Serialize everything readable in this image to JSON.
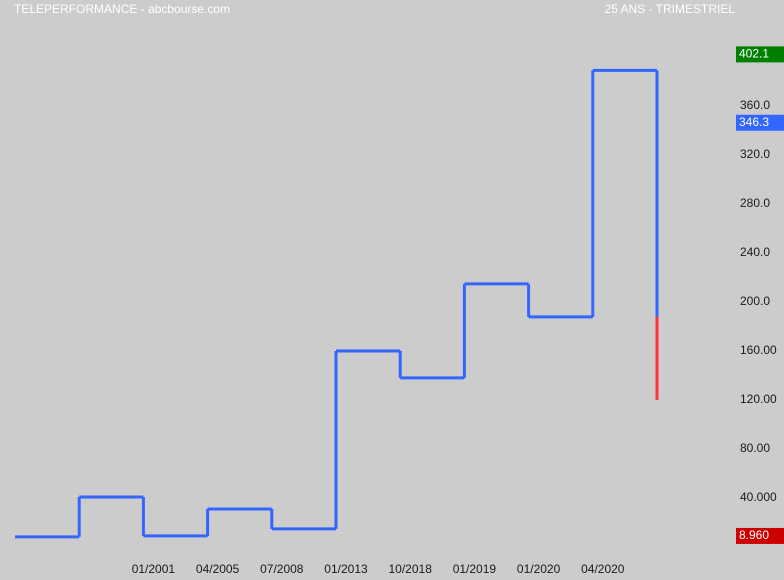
{
  "chart_data": {
    "type": "step",
    "title": "TELEPERFORMANCE - abcbourse.com",
    "subtitle": "25 ANS - TRIMESTRIEL",
    "categories": [
      null,
      null,
      "01/2001",
      "04/2005",
      "07/2008",
      "01/2013",
      "10/2018",
      "01/2019",
      "01/2020",
      "04/2020"
    ],
    "values": [
      8.2,
      40.8,
      9,
      31,
      14.7,
      160,
      138,
      214.7,
      187.8,
      389
    ],
    "color": "#3366ff",
    "final_low": 120,
    "final_low_color": "#ff3333",
    "ylim": [
      -27,
      446.5
    ],
    "yticks": [
      {
        "value": 40,
        "label": "40.000"
      },
      {
        "value": 80,
        "label": "80.00"
      },
      {
        "value": 120,
        "label": "120.00"
      },
      {
        "value": 160,
        "label": "160.00"
      },
      {
        "value": 200,
        "label": "200.0"
      },
      {
        "value": 240,
        "label": "240.0"
      },
      {
        "value": 280,
        "label": "280.0"
      },
      {
        "value": 320,
        "label": "320.0"
      },
      {
        "value": 360,
        "label": "360.0"
      }
    ],
    "price_tags": [
      {
        "value": 402.1,
        "color": "#008000"
      },
      {
        "value": 346.3,
        "color": "#3366ff"
      },
      {
        "value": {
          "value": 8.96,
          "label": "8.960"
        },
        "color": "#cc0000"
      }
    ]
  }
}
